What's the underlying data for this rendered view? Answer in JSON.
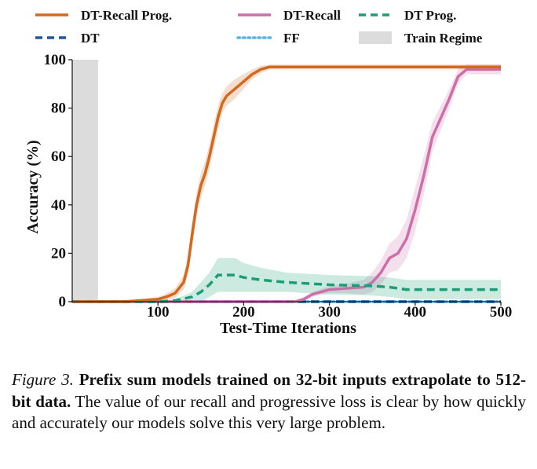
{
  "chart_data": {
    "type": "line",
    "title": "",
    "xlabel": "Test-Time Iterations",
    "ylabel": "Accuracy (%)",
    "xlim": [
      0,
      500
    ],
    "ylim": [
      0,
      100
    ],
    "xticks": [
      "100",
      "200",
      "300",
      "400",
      "500"
    ],
    "yticks": [
      "0",
      "20",
      "40",
      "60",
      "80",
      "100"
    ],
    "grid": false,
    "legend_position": "top",
    "train_regime": {
      "name": "Train Regime",
      "x_range": [
        0,
        30
      ],
      "color": "#dcdcdc"
    },
    "series": [
      {
        "name": "DT-Recall Prog.",
        "color": "#d2691e",
        "style": "solid",
        "x": [
          0,
          60,
          80,
          100,
          110,
          120,
          130,
          135,
          140,
          145,
          150,
          155,
          160,
          165,
          170,
          175,
          180,
          190,
          200,
          210,
          220,
          230,
          240,
          300,
          400,
          500
        ],
        "y": [
          0,
          0,
          0.5,
          1,
          2,
          3.5,
          8,
          15,
          28,
          40,
          48,
          53,
          60,
          68,
          76,
          82,
          85,
          88,
          91,
          94,
          96,
          97,
          97,
          97,
          97,
          97
        ],
        "band": [
          0,
          0,
          0.5,
          1,
          1.5,
          2,
          3,
          4,
          5,
          5,
          5,
          5,
          5,
          5,
          5,
          4,
          4,
          4,
          3,
          2,
          1.5,
          1,
          1,
          1,
          1,
          1
        ]
      },
      {
        "name": "DT-Recall",
        "color": "#cc6fa8",
        "style": "solid",
        "x": [
          0,
          200,
          260,
          270,
          280,
          300,
          320,
          340,
          350,
          360,
          370,
          380,
          390,
          400,
          410,
          420,
          430,
          440,
          450,
          460,
          500
        ],
        "y": [
          0,
          0,
          0,
          1,
          3,
          5,
          5.5,
          6,
          8,
          12,
          18,
          20,
          26,
          38,
          52,
          68,
          76,
          84,
          93,
          96,
          96
        ],
        "band": [
          0,
          0,
          0,
          1,
          1,
          1.5,
          2,
          3,
          4,
          5,
          6,
          7,
          8,
          9,
          8,
          6,
          5,
          4,
          3,
          2,
          2
        ]
      },
      {
        "name": "DT Prog.",
        "color": "#1b9e77",
        "style": "dashed",
        "x": [
          0,
          100,
          120,
          140,
          150,
          160,
          170,
          190,
          200,
          220,
          250,
          300,
          350,
          370,
          390,
          400,
          450,
          500
        ],
        "y": [
          0,
          0,
          0.5,
          2,
          4,
          7,
          11,
          11,
          10,
          9,
          8,
          7,
          6.5,
          6,
          5,
          5,
          5,
          5
        ],
        "band": [
          0,
          0,
          0.5,
          2,
          4,
          5,
          7,
          7,
          6,
          5,
          4,
          4,
          4,
          4,
          4,
          4,
          4,
          4
        ]
      },
      {
        "name": "DT",
        "color": "#1f5a96",
        "style": "dashed",
        "x": [
          0,
          500
        ],
        "y": [
          0,
          0
        ],
        "band": [
          0,
          0
        ]
      },
      {
        "name": "FF",
        "color": "#5ab4e6",
        "style": "dotted",
        "x": [
          0,
          500
        ],
        "y": [
          0,
          0
        ],
        "band": [
          0,
          0
        ]
      }
    ]
  },
  "legend": [
    {
      "name": "DT-Recall Prog.",
      "color": "#d2691e",
      "style": "solid"
    },
    {
      "name": "DT-Recall",
      "color": "#cc6fa8",
      "style": "solid"
    },
    {
      "name": "DT Prog.",
      "color": "#1b9e77",
      "style": "dashed"
    },
    {
      "name": "DT",
      "color": "#1f5a96",
      "style": "dashed"
    },
    {
      "name": "FF",
      "color": "#5ab4e6",
      "style": "dotted"
    },
    {
      "name": "Train Regime",
      "color": "#dcdcdc",
      "style": "patch"
    }
  ],
  "caption": {
    "label": "Figure 3.",
    "bold": "Prefix sum models trained on 32-bit inputs extrapolate to 512-bit data.",
    "text": "The value of our recall and progressive loss is clear by how quickly and accurately our models solve this very large problem."
  }
}
